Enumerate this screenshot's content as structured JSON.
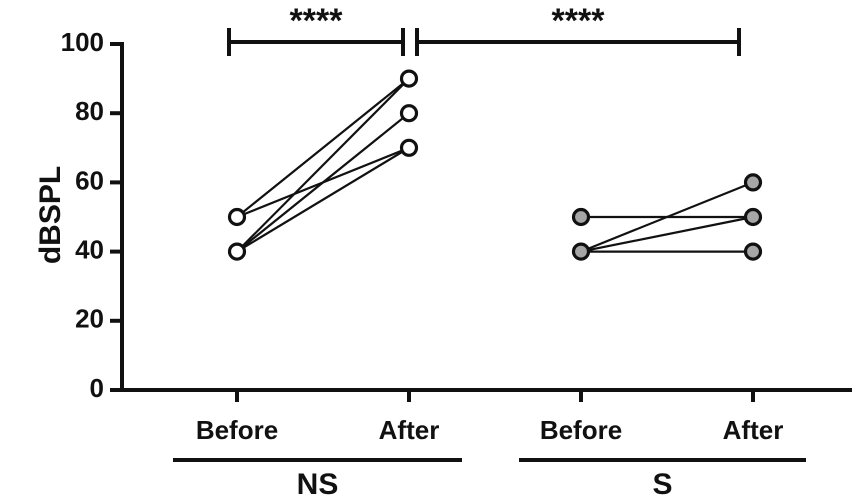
{
  "chart_data": {
    "type": "scatter",
    "ylabel": "dBSPL",
    "ylim": [
      0,
      100
    ],
    "yticks": [
      "0",
      "20",
      "40",
      "60",
      "80",
      "100"
    ],
    "categories": [
      "Before",
      "After",
      "Before",
      "After"
    ],
    "groups": [
      {
        "name": "NS",
        "marker_fill": "#ffffff",
        "pairs": [
          {
            "before": 50,
            "after": 90
          },
          {
            "before": 50,
            "after": 70
          },
          {
            "before": 40,
            "after": 80
          },
          {
            "before": 40,
            "after": 90
          },
          {
            "before": 40,
            "after": 70
          }
        ]
      },
      {
        "name": "S",
        "marker_fill": "#a6a6a6",
        "pairs": [
          {
            "before": 50,
            "after": 50
          },
          {
            "before": 40,
            "after": 60
          },
          {
            "before": 40,
            "after": 50
          },
          {
            "before": 40,
            "after": 40
          }
        ]
      }
    ],
    "significance": [
      {
        "label": "****",
        "comparison": "NS Before vs NS After"
      },
      {
        "label": "****",
        "comparison": "NS After vs S After"
      }
    ]
  }
}
